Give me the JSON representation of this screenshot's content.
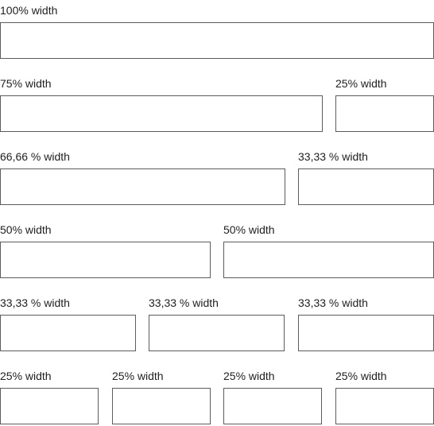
{
  "rows": [
    {
      "fields": [
        {
          "label": "100% width",
          "value": ""
        }
      ]
    },
    {
      "fields": [
        {
          "label": "75% width",
          "value": ""
        },
        {
          "label": "25% width",
          "value": ""
        }
      ]
    },
    {
      "fields": [
        {
          "label": "66,66 % width",
          "value": ""
        },
        {
          "label": "33,33 % width",
          "value": ""
        }
      ]
    },
    {
      "fields": [
        {
          "label": "50% width",
          "value": ""
        },
        {
          "label": "50% width",
          "value": ""
        }
      ]
    },
    {
      "fields": [
        {
          "label": "33,33 % width",
          "value": ""
        },
        {
          "label": "33,33 % width",
          "value": ""
        },
        {
          "label": "33,33 % width",
          "value": ""
        }
      ]
    },
    {
      "fields": [
        {
          "label": "25% width",
          "value": ""
        },
        {
          "label": "25% width",
          "value": ""
        },
        {
          "label": "25% width",
          "value": ""
        },
        {
          "label": "25% width",
          "value": ""
        }
      ]
    }
  ]
}
